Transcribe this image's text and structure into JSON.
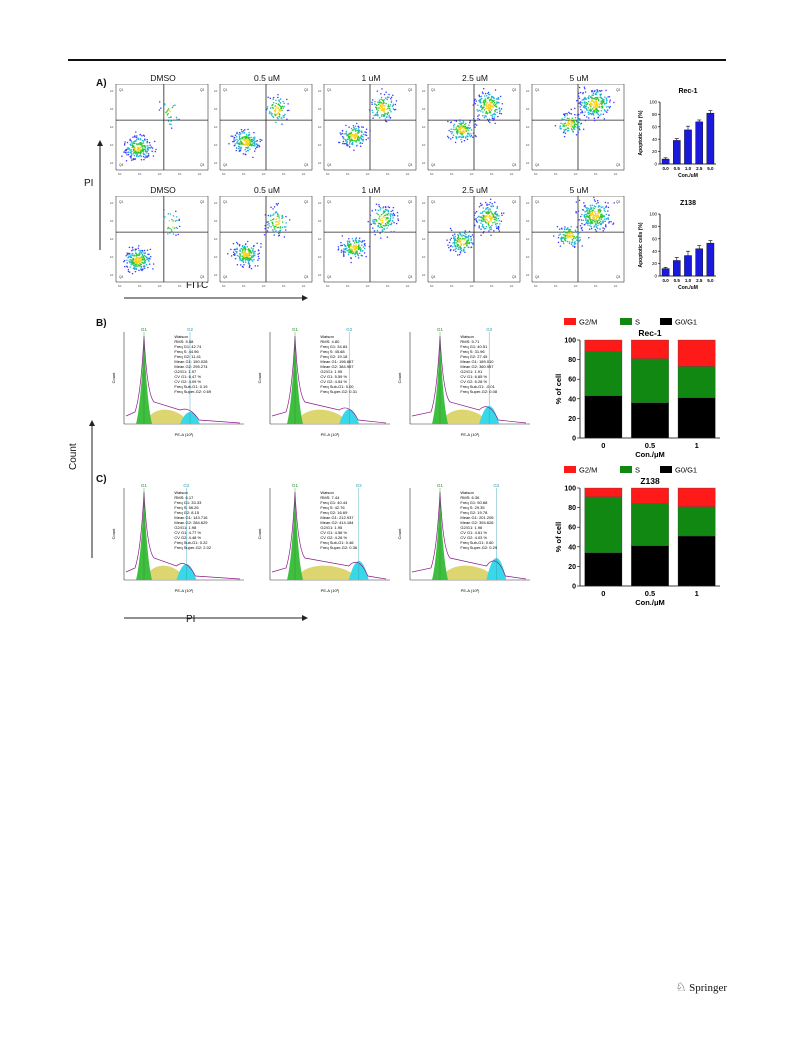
{
  "panels": {
    "a": "A)",
    "b": "B)",
    "c": "C)"
  },
  "flow": {
    "conditions": [
      "DMSO",
      "0.5 uM",
      "1 uM",
      "2.5 uM",
      "5 uM"
    ],
    "y_axis": "PI",
    "x_axis": "FITC"
  },
  "cellcycle": {
    "y_axis": "Count",
    "x_axis": "PI"
  },
  "hist_labels": {
    "g1": "G1",
    "g2": "G2",
    "x": "PE-A (10³)",
    "y": "Count"
  },
  "footer": "Springer",
  "colors": {
    "bar_blue": "#1a1adc",
    "g2m": "#ff1a1a",
    "s": "#118811",
    "g0g1": "#000000"
  },
  "chart_data": [
    {
      "type": "bar",
      "title": "Rec-1",
      "ylabel": "Apoptotic cells (%)",
      "xlabel": "Con./uM",
      "categories": [
        "0.0",
        "0.5",
        "1.0",
        "2.5",
        "5.0"
      ],
      "values": [
        8,
        38,
        55,
        68,
        82
      ],
      "errors": [
        2,
        3,
        6,
        3,
        4
      ],
      "ylim": [
        0,
        100
      ],
      "yticks": [
        0,
        20,
        40,
        60,
        80,
        100
      ]
    },
    {
      "type": "bar",
      "title": "Z138",
      "ylabel": "Apoptotic cells (%)",
      "xlabel": "Con./uM",
      "categories": [
        "0.0",
        "0.5",
        "1.0",
        "2.5",
        "5.0"
      ],
      "values": [
        12,
        25,
        33,
        44,
        53
      ],
      "errors": [
        2,
        5,
        7,
        5,
        4
      ],
      "ylim": [
        0,
        100
      ],
      "yticks": [
        0,
        20,
        40,
        60,
        80,
        100
      ]
    },
    {
      "type": "bar",
      "stacked": true,
      "title": "Rec-1",
      "ylabel": "% of cell",
      "xlabel": "Con./μM",
      "categories": [
        "0",
        "0.5",
        "1"
      ],
      "series": [
        {
          "name": "G0/G1",
          "values": [
            43,
            36,
            41
          ]
        },
        {
          "name": "S",
          "values": [
            45,
            45,
            32
          ]
        },
        {
          "name": "G2/M",
          "values": [
            12,
            19,
            27
          ]
        }
      ],
      "ylim": [
        0,
        100
      ],
      "yticks": [
        0,
        20,
        40,
        60,
        80,
        100
      ],
      "legend": "top"
    },
    {
      "type": "bar",
      "stacked": true,
      "title": "Z138",
      "ylabel": "% of cell",
      "xlabel": "Con./μM",
      "categories": [
        "0",
        "0.5",
        "1"
      ],
      "series": [
        {
          "name": "G0/G1",
          "values": [
            34,
            41,
            51
          ]
        },
        {
          "name": "S",
          "values": [
            57,
            43,
            30
          ]
        },
        {
          "name": "G2/M",
          "values": [
            9,
            16,
            19
          ]
        }
      ],
      "ylim": [
        0,
        100
      ],
      "yticks": [
        0,
        20,
        40,
        60,
        80,
        100
      ],
      "legend": "top"
    }
  ]
}
